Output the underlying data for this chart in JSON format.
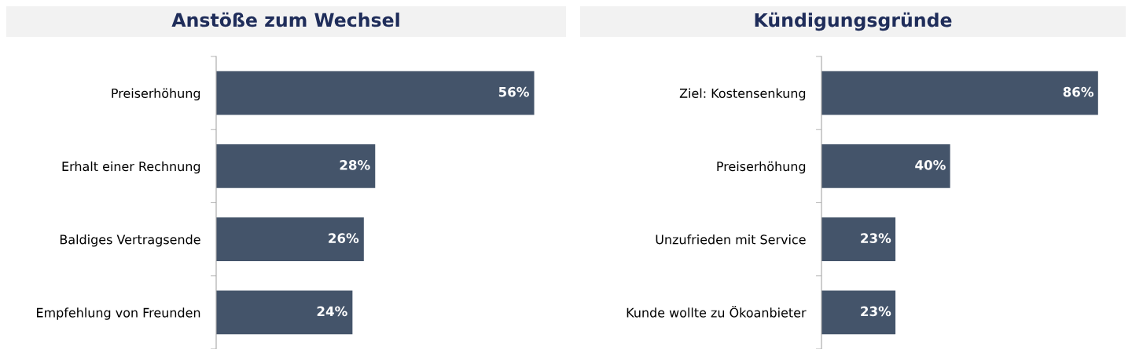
{
  "chart_data": [
    {
      "type": "bar",
      "orientation": "horizontal",
      "title": "Anstöße zum Wechsel",
      "categories": [
        "Preiserhöhung",
        "Erhalt einer Rechnung",
        "Baldiges Vertragsende",
        "Empfehlung von Freunden"
      ],
      "values": [
        56,
        28,
        26,
        24
      ],
      "color": "#44546a",
      "data_labels": true,
      "value_labels": [
        "56%",
        "28%",
        "26%",
        "24%"
      ],
      "grid": false,
      "legend": false
    },
    {
      "type": "bar",
      "orientation": "horizontal",
      "title": "Kündigungsgründe",
      "categories": [
        "Ziel: Kostensenkung",
        "Preiserhöhung",
        "Unzufrieden mit Service",
        "Kunde wollte zu Ökoanbieter"
      ],
      "values": [
        86,
        40,
        23,
        23
      ],
      "color": "#44546a",
      "data_labels": true,
      "value_labels": [
        "86%",
        "40%",
        "23%",
        "23%"
      ],
      "grid": false,
      "legend": false
    }
  ]
}
